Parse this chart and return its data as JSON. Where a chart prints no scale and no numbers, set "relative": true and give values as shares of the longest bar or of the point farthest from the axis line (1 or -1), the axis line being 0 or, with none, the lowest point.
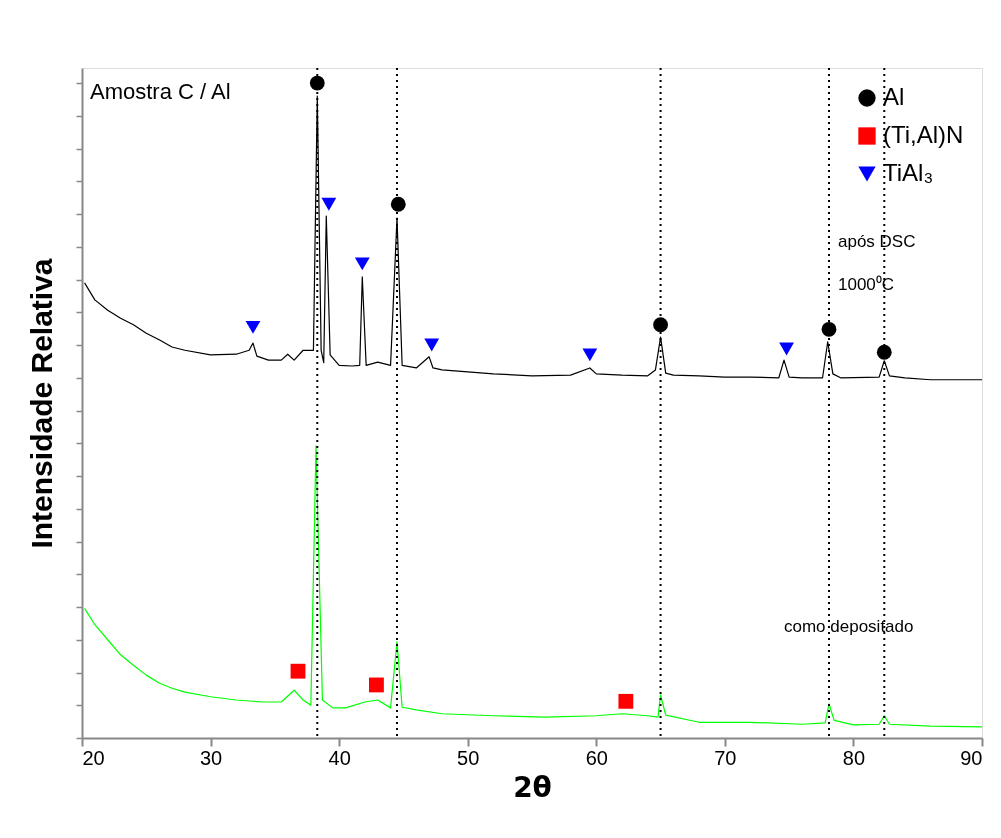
{
  "chart_data": {
    "type": "line",
    "relative": true,
    "xlabel": "2θ",
    "ylabel": "Intensidade Relativa",
    "xlim": [
      20,
      90
    ],
    "xticks": [
      20,
      30,
      40,
      50,
      60,
      70,
      80,
      90
    ],
    "tick_labels": "x",
    "grid": false,
    "legend": "top right",
    "annotations": [
      "Amostra C / Al",
      "após DSC",
      "1000⁰C",
      "como depositado"
    ],
    "ref_lines": [
      {
        "axis": "x",
        "value": 38.3,
        "line_style": "dotted",
        "color": "#000000"
      },
      {
        "axis": "x",
        "value": 44.5,
        "line_style": "dotted",
        "color": "#000000"
      },
      {
        "axis": "x",
        "value": 65.0,
        "line_style": "dotted",
        "color": "#000000"
      },
      {
        "axis": "x",
        "value": 78.1,
        "line_style": "dotted",
        "color": "#000000"
      },
      {
        "axis": "x",
        "value": 82.4,
        "line_style": "dotted",
        "color": "#000000"
      }
    ],
    "series": [
      {
        "color": "#000000",
        "x": [
          20.2,
          21,
          22,
          23,
          24,
          25,
          26,
          27,
          28,
          30,
          32,
          33.0,
          33.3,
          33.6,
          34.5,
          35.5,
          36,
          36.5,
          37.2,
          38.0,
          38.3,
          38.6,
          38.8,
          39.0,
          39.3,
          40,
          41,
          41.6,
          41.8,
          42.1,
          43,
          44.0,
          44.5,
          44.9,
          46,
          47.0,
          47.3,
          48,
          50,
          52,
          55,
          58,
          59.5,
          60,
          62,
          64,
          64.6,
          65.0,
          65.4,
          66,
          68,
          70,
          72,
          74.2,
          74.6,
          75,
          76,
          77.6,
          78.0,
          78.4,
          79,
          82,
          82.4,
          82.8,
          84,
          86,
          88,
          90
        ],
        "values": [
          0.695,
          0.669,
          0.653,
          0.641,
          0.631,
          0.618,
          0.608,
          0.597,
          0.592,
          0.585,
          0.586,
          0.592,
          0.603,
          0.583,
          0.577,
          0.577,
          0.586,
          0.577,
          0.592,
          0.592,
          0.98,
          0.592,
          0.573,
          0.797,
          0.585,
          0.569,
          0.568,
          0.569,
          0.704,
          0.569,
          0.574,
          0.569,
          0.794,
          0.569,
          0.565,
          0.582,
          0.565,
          0.562,
          0.559,
          0.556,
          0.553,
          0.554,
          0.565,
          0.556,
          0.554,
          0.553,
          0.562,
          0.612,
          0.557,
          0.554,
          0.553,
          0.551,
          0.551,
          0.55,
          0.577,
          0.551,
          0.55,
          0.55,
          0.605,
          0.556,
          0.55,
          0.551,
          0.576,
          0.553,
          0.55,
          0.547,
          0.547,
          0.547
        ]
      },
      {
        "color": "#00ff00",
        "x": [
          20.2,
          21,
          22,
          23,
          24,
          25,
          26,
          27,
          28,
          30,
          32,
          34,
          35.5,
          36.5,
          37.2,
          37.8,
          38.2,
          38.7,
          39.5,
          40.5,
          42,
          43,
          44,
          44.5,
          44.9,
          46,
          48,
          52,
          56,
          60,
          62,
          64,
          64.8,
          65.0,
          65.4,
          68,
          72,
          76,
          77.8,
          78.1,
          78.5,
          80,
          82,
          82.4,
          82.8,
          86,
          90
        ],
        "values": [
          0.198,
          0.173,
          0.15,
          0.127,
          0.111,
          0.096,
          0.084,
          0.076,
          0.07,
          0.063,
          0.058,
          0.055,
          0.055,
          0.073,
          0.058,
          0.05,
          0.446,
          0.058,
          0.046,
          0.046,
          0.055,
          0.058,
          0.046,
          0.147,
          0.047,
          0.043,
          0.037,
          0.034,
          0.032,
          0.034,
          0.037,
          0.034,
          0.032,
          0.066,
          0.035,
          0.024,
          0.024,
          0.021,
          0.023,
          0.052,
          0.027,
          0.02,
          0.021,
          0.034,
          0.021,
          0.018,
          0.017
        ]
      },
      {
        "type": "scatter",
        "name": "Al",
        "marker": "circle",
        "color": "#000000",
        "x": [
          38.3,
          44.6,
          65.0,
          78.1,
          82.4
        ],
        "values": [
          1.0,
          0.815,
          0.631,
          0.624,
          0.589
        ]
      },
      {
        "type": "scatter",
        "name": "(Ti,Al)N",
        "marker": "square",
        "color": "#ff0000",
        "x": [
          36.8,
          42.9,
          62.3
        ],
        "values": [
          0.102,
          0.081,
          0.056
        ]
      },
      {
        "type": "scatter",
        "name": "TiAl₃",
        "marker": "triangle",
        "color": "#0000ff",
        "x": [
          33.3,
          39.2,
          41.8,
          47.2,
          59.5,
          74.8
        ],
        "values": [
          0.627,
          0.815,
          0.724,
          0.6,
          0.585,
          0.594
        ]
      }
    ]
  }
}
